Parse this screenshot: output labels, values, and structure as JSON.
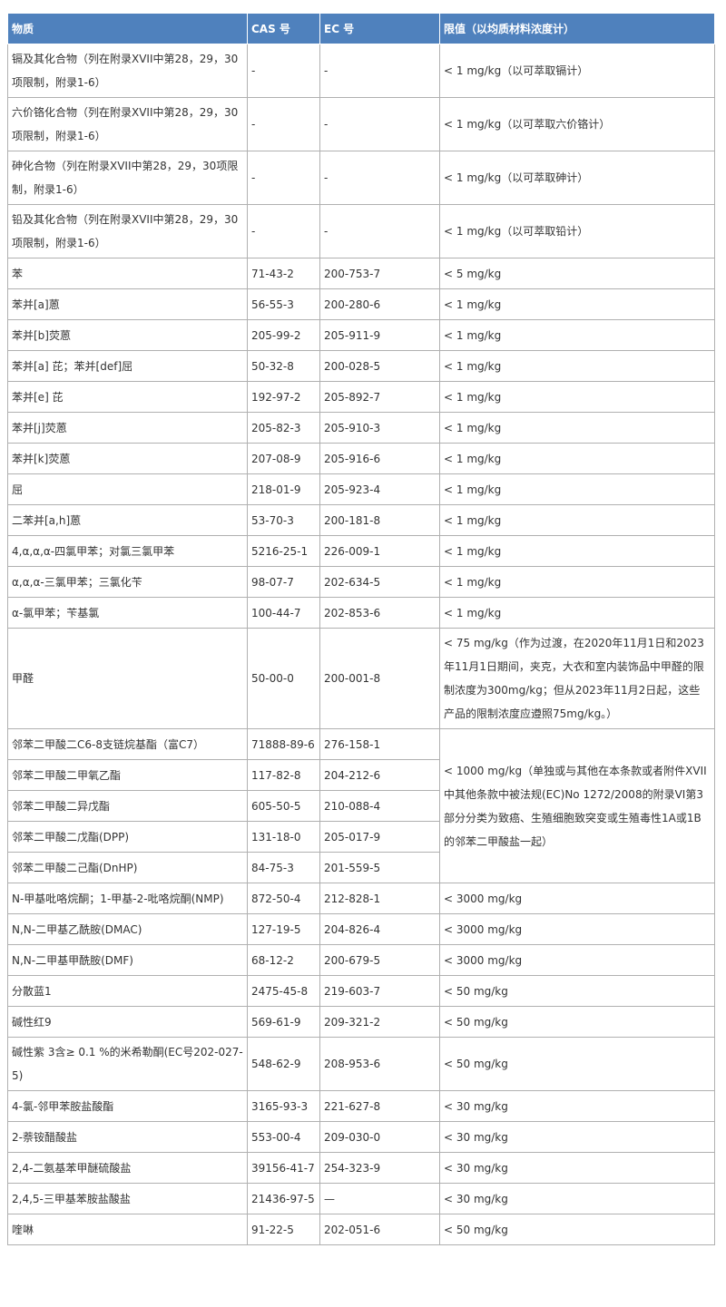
{
  "table": {
    "header": [
      "物质",
      "CAS 号",
      "EC 号",
      "限值（以均质材料浓度计）"
    ],
    "rows": [
      [
        "镉及其化合物（列在附录XVII中第28，29，30项限制，附录1-6）",
        "-",
        "-",
        "< 1 mg/kg（以可萃取镉计）"
      ],
      [
        "六价铬化合物（列在附录XVII中第28，29，30项限制，附录1-6）",
        "-",
        "-",
        "< 1 mg/kg（以可萃取六价铬计）"
      ],
      [
        "砷化合物（列在附录XVII中第28，29，30项限制，附录1-6）",
        "-",
        "-",
        "< 1 mg/kg（以可萃取砷计）"
      ],
      [
        "铅及其化合物（列在附录XVII中第28，29，30项限制，附录1-6）",
        "-",
        "-",
        "< 1 mg/kg（以可萃取铅计）"
      ],
      [
        "苯",
        "71-43-2",
        "200-753-7",
        "< 5 mg/kg"
      ],
      [
        "苯并[a]蒽",
        "56-55-3",
        "200-280-6",
        "< 1 mg/kg"
      ],
      [
        "苯并[b]荧蒽",
        "205-99-2",
        "205-911-9",
        "< 1 mg/kg"
      ],
      [
        "苯并[a] 芘；苯并[def]屈",
        "50-32-8",
        "200-028-5",
        "< 1 mg/kg"
      ],
      [
        "苯并[e] 芘",
        "192-97-2",
        "205-892-7",
        "< 1 mg/kg"
      ],
      [
        "苯并[j]荧蒽",
        "205-82-3",
        "205-910-3",
        "< 1 mg/kg"
      ],
      [
        "苯并[k]荧蒽",
        "207-08-9",
        "205-916-6",
        "< 1 mg/kg"
      ],
      [
        "屈",
        "218-01-9",
        "205-923-4",
        "< 1 mg/kg"
      ],
      [
        "二苯并[a,h]蒽",
        "53-70-3",
        "200-181-8",
        "< 1 mg/kg"
      ],
      [
        "4,α,α,α-四氯甲苯；对氯三氯甲苯",
        "5216-25-1",
        "226-009-1",
        "< 1 mg/kg"
      ],
      [
        "α,α,α-三氯甲苯；三氯化苄",
        "98-07-7",
        "202-634-5",
        "< 1 mg/kg"
      ],
      [
        "α-氯甲苯；苄基氯",
        "100-44-7",
        "202-853-6",
        "< 1 mg/kg"
      ],
      [
        "甲醛",
        "50-00-0",
        "200-001-8",
        "< 75 mg/kg（作为过渡，在2020年11月1日和2023年11月1日期间，夹克，大衣和室内装饰品中甲醛的限制浓度为300mg/kg；但从2023年11月2日起，这些产品的限制浓度应遵照75mg/kg。）"
      ],
      [
        "邻苯二甲酸二C6-8支链烷基酯（富C7）",
        "71888-89-6",
        "276-158-1",
        "< 1000 mg/kg（单独或与其他在本条款或者附件XVII中其他条款中被法规(EC)No 1272/2008的附录VI第3部分分类为致癌、生殖细胞致突变或生殖毒性1A或1B的邻苯二甲酸盐一起）"
      ],
      [
        "邻苯二甲酸二甲氧乙酯",
        "117-82-8",
        "204-212-6"
      ],
      [
        "邻苯二甲酸二异戊酯",
        "605-50-5",
        "210-088-4"
      ],
      [
        "邻苯二甲酸二戊酯(DPP)",
        "131-18-0",
        "205-017-9"
      ],
      [
        "邻苯二甲酸二己酯(DnHP)",
        "84-75-3",
        "201-559-5"
      ],
      [
        "N-甲基吡咯烷酮；1-甲基-2-吡咯烷酮(NMP)",
        "872-50-4",
        "212-828-1",
        "< 3000 mg/kg"
      ],
      [
        "N,N-二甲基乙酰胺(DMAC)",
        "127-19-5",
        "204-826-4",
        "< 3000 mg/kg"
      ],
      [
        "N,N-二甲基甲酰胺(DMF)",
        "68-12-2",
        "200-679-5",
        "< 3000 mg/kg"
      ],
      [
        "分散蓝1",
        "2475-45-8",
        "219-603-7",
        "< 50 mg/kg"
      ],
      [
        "碱性红9",
        "569-61-9",
        "209-321-2",
        "< 50 mg/kg"
      ],
      [
        "碱性紫 3含≥ 0.1 %的米希勒酮(EC号202-027-5)",
        "548-62-9",
        "208-953-6",
        "< 50 mg/kg"
      ],
      [
        "4-氯-邻甲苯胺盐酸酯",
        "3165-93-3",
        "221-627-8",
        "< 30 mg/kg"
      ],
      [
        "2-萘铵醋酸盐",
        "553-00-4",
        "209-030-0",
        "< 30 mg/kg"
      ],
      [
        "2,4-二氨基苯甲醚硫酸盐",
        "39156-41-7",
        "254-323-9",
        "< 30 mg/kg"
      ],
      [
        "2,4,5-三甲基苯胺盐酸盐",
        "21436-97-5",
        "—",
        "< 30 mg/kg"
      ],
      [
        "喹啉",
        "91-22-5",
        "202-051-6",
        "< 50 mg/kg"
      ]
    ]
  }
}
